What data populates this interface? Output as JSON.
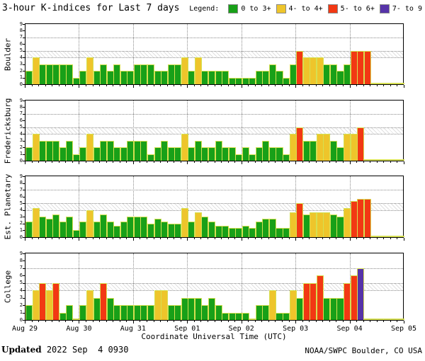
{
  "title": "3-hour K-indices for Last 7 days",
  "legend": {
    "label": "Legend:",
    "items": [
      {
        "label": "0 to 3+",
        "color_key": "green"
      },
      {
        "label": "4- to 4+",
        "color_key": "yellow"
      },
      {
        "label": "5- to 6+",
        "color_key": "red"
      },
      {
        "label": "7- to 9",
        "color_key": "purple"
      }
    ]
  },
  "xaxis": {
    "title": "Coordinate Universal Time (UTC)",
    "tick_labels": [
      "Aug 29",
      "Aug 30",
      "Aug 31",
      "Sep 01",
      "Sep 02",
      "Sep 03",
      "Sep 04",
      "Sep 05"
    ]
  },
  "footer": {
    "updated_label": "Updated",
    "updated_value": " 2022 Sep  4 0930",
    "credit": "NOAA/SWPC Boulder, CO USA"
  },
  "chart_data": {
    "type": "bar",
    "title": "3-hour K-indices for Last 7 days",
    "ylim": [
      0,
      9
    ],
    "yticks": [
      0,
      1,
      2,
      3,
      4,
      5,
      6,
      7,
      8,
      9
    ],
    "threshold_lines": [
      4,
      5,
      7
    ],
    "hatch_bands": [
      [
        4,
        5
      ]
    ],
    "bars_per_day": 8,
    "days": [
      "Aug 29",
      "Aug 30",
      "Aug 31",
      "Sep 01",
      "Sep 02",
      "Sep 03",
      "Sep 04",
      "Sep 05"
    ],
    "grid": true,
    "legend_position": "top-right",
    "colors": {
      "green": "#18a018",
      "yellow": "#eec52b",
      "red": "#f23813",
      "purple": "#5633a8",
      "bar_outline": "#d5df52",
      "gridline": "#8a8a8a"
    },
    "color_rule": [
      {
        "min": 6.67,
        "color_key": "purple"
      },
      {
        "min": 4.67,
        "color_key": "red"
      },
      {
        "min": 3.67,
        "color_key": "yellow"
      },
      {
        "min": 0,
        "color_key": "green"
      }
    ],
    "series": [
      {
        "name": "Boulder",
        "values": [
          2,
          4,
          3,
          3,
          3,
          3,
          3,
          1,
          2,
          4,
          2,
          3,
          2,
          3,
          2,
          2,
          3,
          3,
          3,
          2,
          2,
          3,
          3,
          4,
          2,
          4,
          2,
          2,
          2,
          2,
          1,
          1,
          1,
          1,
          2,
          2,
          3,
          2,
          1,
          3,
          5,
          4,
          4,
          4,
          3,
          3,
          2,
          3,
          5,
          5,
          5,
          null,
          null,
          null,
          null,
          null
        ]
      },
      {
        "name": "Fredericksburg",
        "values": [
          2,
          4,
          3,
          3,
          3,
          2,
          3,
          1,
          2,
          4,
          2,
          3,
          3,
          2,
          2,
          3,
          3,
          3,
          1,
          2,
          3,
          2,
          2,
          4,
          2,
          3,
          2,
          2,
          3,
          2,
          2,
          1,
          2,
          1,
          2,
          3,
          2,
          2,
          1,
          4,
          5,
          3,
          3,
          4,
          4,
          3,
          2,
          4,
          4,
          5,
          null,
          null,
          null,
          null,
          null,
          null
        ]
      },
      {
        "name": "Est. Planetary",
        "values": [
          2.33,
          4.33,
          3,
          2.67,
          3.33,
          2.33,
          3,
          1,
          2.33,
          4,
          2.33,
          3.33,
          2.33,
          1.67,
          2.33,
          3,
          3,
          3,
          2,
          2.67,
          2.33,
          2,
          2,
          4.33,
          2.33,
          3.67,
          3,
          2.33,
          1.67,
          1.67,
          1.33,
          1.33,
          1.67,
          1.33,
          2.33,
          2.67,
          2.67,
          1.33,
          1.33,
          3.67,
          5,
          3.33,
          3.67,
          3.67,
          3.67,
          3.33,
          3,
          4.33,
          5.33,
          5.67,
          5.67,
          null,
          null,
          null,
          null,
          null
        ]
      },
      {
        "name": "College",
        "values": [
          2,
          4,
          5,
          4,
          5,
          1,
          2,
          0,
          2,
          4,
          3,
          5,
          3,
          2,
          2,
          2,
          2,
          2,
          2,
          4,
          4,
          2,
          2,
          3,
          3,
          3,
          2,
          3,
          2,
          1,
          1,
          1,
          1,
          0,
          2,
          2,
          4,
          1,
          1,
          4,
          3,
          5,
          5,
          6,
          3,
          3,
          3,
          5,
          6,
          7,
          null,
          null,
          null,
          null,
          null,
          null
        ]
      }
    ]
  }
}
